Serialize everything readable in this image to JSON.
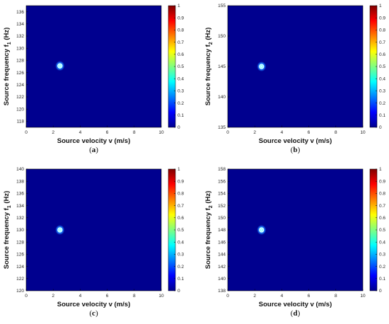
{
  "colors": {
    "background_low": "#00008f",
    "colormap": [
      "#00008f",
      "#0000ff",
      "#0080ff",
      "#00ffff",
      "#80ff80",
      "#ffff00",
      "#ff8000",
      "#ff0000",
      "#800000"
    ],
    "marker": "#ffffff"
  },
  "chart_data": [
    {
      "type": "heatmap",
      "caption_letter": "a",
      "xlabel": "Source velocity v (m/s)",
      "ylabel": "Source frequency f",
      "ylabel_sub": "1",
      "ylabel_unit": "(Hz)",
      "xlim": [
        0,
        10
      ],
      "ylim": [
        117,
        137
      ],
      "xticks": [
        "0",
        "2",
        "4",
        "6",
        "8",
        "10"
      ],
      "yticks": [
        "118",
        "120",
        "122",
        "124",
        "126",
        "128",
        "130",
        "132",
        "134",
        "136"
      ],
      "peak": {
        "x": 2.5,
        "y": 127.1,
        "value": 1
      },
      "colorbar": {
        "range": [
          0,
          1
        ],
        "ticks": [
          "0",
          "0.1",
          "0.2",
          "0.3",
          "0.4",
          "0.5",
          "0.6",
          "0.7",
          "0.8",
          "0.9",
          "1"
        ]
      }
    },
    {
      "type": "heatmap",
      "caption_letter": "b",
      "xlabel": "Source velocity v (m/s)",
      "ylabel": "Source frequency f",
      "ylabel_sub": "2",
      "ylabel_unit": "(Hz)",
      "xlim": [
        0,
        10
      ],
      "ylim": [
        135,
        155
      ],
      "xticks": [
        "0",
        "2",
        "4",
        "6",
        "8",
        "10"
      ],
      "yticks": [
        "135",
        "140",
        "145",
        "150",
        "155"
      ],
      "peak": {
        "x": 2.5,
        "y": 145,
        "value": 1
      },
      "colorbar": {
        "range": [
          0,
          1
        ],
        "ticks": [
          "0",
          "0.1",
          "0.2",
          "0.3",
          "0.4",
          "0.5",
          "0.6",
          "0.7",
          "0.8",
          "0.9",
          "1"
        ]
      }
    },
    {
      "type": "heatmap",
      "caption_letter": "c",
      "xlabel": "Source velocity v (m/s)",
      "ylabel": "Source frequency f",
      "ylabel_sub": "1",
      "ylabel_unit": "(Hz)",
      "xlim": [
        0,
        10
      ],
      "ylim": [
        120,
        140
      ],
      "xticks": [
        "0",
        "2",
        "4",
        "6",
        "8",
        "10"
      ],
      "yticks": [
        "120",
        "122",
        "124",
        "126",
        "128",
        "130",
        "132",
        "134",
        "136",
        "138",
        "140"
      ],
      "peak": {
        "x": 2.5,
        "y": 130,
        "value": 1
      },
      "colorbar": {
        "range": [
          0,
          1
        ],
        "ticks": [
          "0",
          "0.1",
          "0.2",
          "0.3",
          "0.4",
          "0.5",
          "0.6",
          "0.7",
          "0.8",
          "0.9",
          "1"
        ]
      }
    },
    {
      "type": "heatmap",
      "caption_letter": "d",
      "xlabel": "Source velocity v (m/s)",
      "ylabel": "Source frequency f",
      "ylabel_sub": "2",
      "ylabel_unit": "(Hz)",
      "xlim": [
        0,
        10
      ],
      "ylim": [
        138,
        158
      ],
      "xticks": [
        "0",
        "2",
        "4",
        "6",
        "8",
        "10"
      ],
      "yticks": [
        "138",
        "140",
        "142",
        "144",
        "146",
        "148",
        "150",
        "152",
        "154",
        "156",
        "158"
      ],
      "peak": {
        "x": 2.5,
        "y": 148,
        "value": 1
      },
      "colorbar": {
        "range": [
          0,
          1
        ],
        "ticks": [
          "0",
          "0.1",
          "0.2",
          "0.3",
          "0.4",
          "0.5",
          "0.6",
          "0.7",
          "0.8",
          "0.9",
          "1"
        ]
      }
    }
  ]
}
